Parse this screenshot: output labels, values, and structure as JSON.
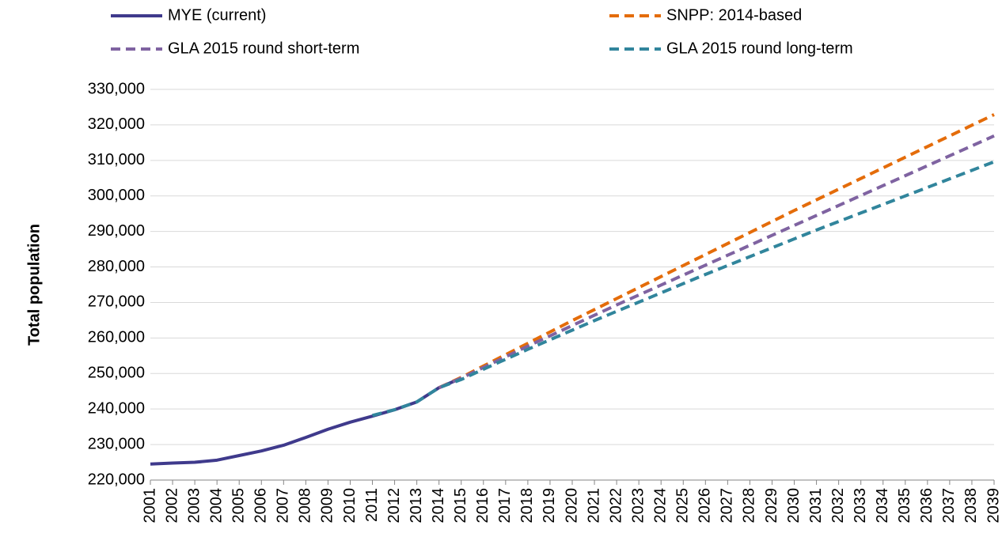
{
  "chart_data": {
    "type": "line",
    "y_label": "Total population",
    "categories": [
      "2001",
      "2002",
      "2003",
      "2004",
      "2005",
      "2006",
      "2007",
      "2008",
      "2009",
      "2010",
      "2011",
      "2012",
      "2013",
      "2014",
      "2015",
      "2016",
      "2017",
      "2018",
      "2019",
      "2020",
      "2021",
      "2022",
      "2023",
      "2024",
      "2025",
      "2026",
      "2027",
      "2028",
      "2029",
      "2030",
      "2031",
      "2032",
      "2033",
      "2034",
      "2035",
      "2036",
      "2037",
      "2038",
      "2039"
    ],
    "series": [
      {
        "name": "MYE (current)",
        "color": "#3f3a8c",
        "style": "solid",
        "values": [
          224500,
          224800,
          225000,
          225600,
          226900,
          228200,
          229800,
          232000,
          234300,
          236300,
          238000,
          239800,
          242000,
          246000,
          248700,
          null,
          null,
          null,
          null,
          null,
          null,
          null,
          null,
          null,
          null,
          null,
          null,
          null,
          null,
          null,
          null,
          null,
          null,
          null,
          null,
          null,
          null,
          null,
          null
        ]
      },
      {
        "name": "SNPP: 2014-based",
        "color": "#e46c0a",
        "style": "dashed",
        "values": [
          null,
          null,
          null,
          null,
          null,
          null,
          null,
          null,
          null,
          null,
          null,
          null,
          null,
          246000,
          248900,
          252100,
          255300,
          258500,
          261700,
          264900,
          268000,
          271100,
          274200,
          277300,
          280400,
          283500,
          286600,
          289700,
          292800,
          295900,
          298900,
          301900,
          304900,
          307900,
          310900,
          313900,
          316900,
          319900,
          322900
        ]
      },
      {
        "name": "GLA 2015 round short-term",
        "color": "#7f63a1",
        "style": "dashed",
        "values": [
          null,
          null,
          null,
          null,
          null,
          null,
          null,
          null,
          null,
          null,
          null,
          null,
          null,
          246000,
          248700,
          251700,
          254700,
          257700,
          260600,
          263500,
          266400,
          269300,
          272100,
          274900,
          277700,
          280500,
          283300,
          286100,
          288900,
          291700,
          294500,
          297300,
          300100,
          302900,
          305700,
          308500,
          311300,
          314100,
          316900
        ]
      },
      {
        "name": "GLA 2015 round long-term",
        "color": "#31859c",
        "style": "dashed",
        "values": [
          null,
          null,
          null,
          null,
          null,
          null,
          null,
          null,
          null,
          null,
          238200,
          239800,
          242000,
          246000,
          248300,
          251200,
          254000,
          256800,
          259500,
          262200,
          264900,
          267500,
          270100,
          272700,
          275300,
          277900,
          280400,
          282900,
          285400,
          287900,
          290400,
          292800,
          295200,
          297600,
          300000,
          302400,
          304800,
          307200,
          309600
        ]
      }
    ],
    "ylim": [
      220000,
      330000
    ],
    "yticks": [
      {
        "value": 220000,
        "label": "220,000"
      },
      {
        "value": 230000,
        "label": "230,000"
      },
      {
        "value": 240000,
        "label": "240,000"
      },
      {
        "value": 250000,
        "label": "250,000"
      },
      {
        "value": 260000,
        "label": "260,000"
      },
      {
        "value": 270000,
        "label": "270,000"
      },
      {
        "value": 280000,
        "label": "280,000"
      },
      {
        "value": 290000,
        "label": "290,000"
      },
      {
        "value": 300000,
        "label": "300,000"
      },
      {
        "value": 310000,
        "label": "310,000"
      },
      {
        "value": 320000,
        "label": "320,000"
      },
      {
        "value": 330000,
        "label": "330,000"
      }
    ],
    "grid": true,
    "legend": "top"
  }
}
